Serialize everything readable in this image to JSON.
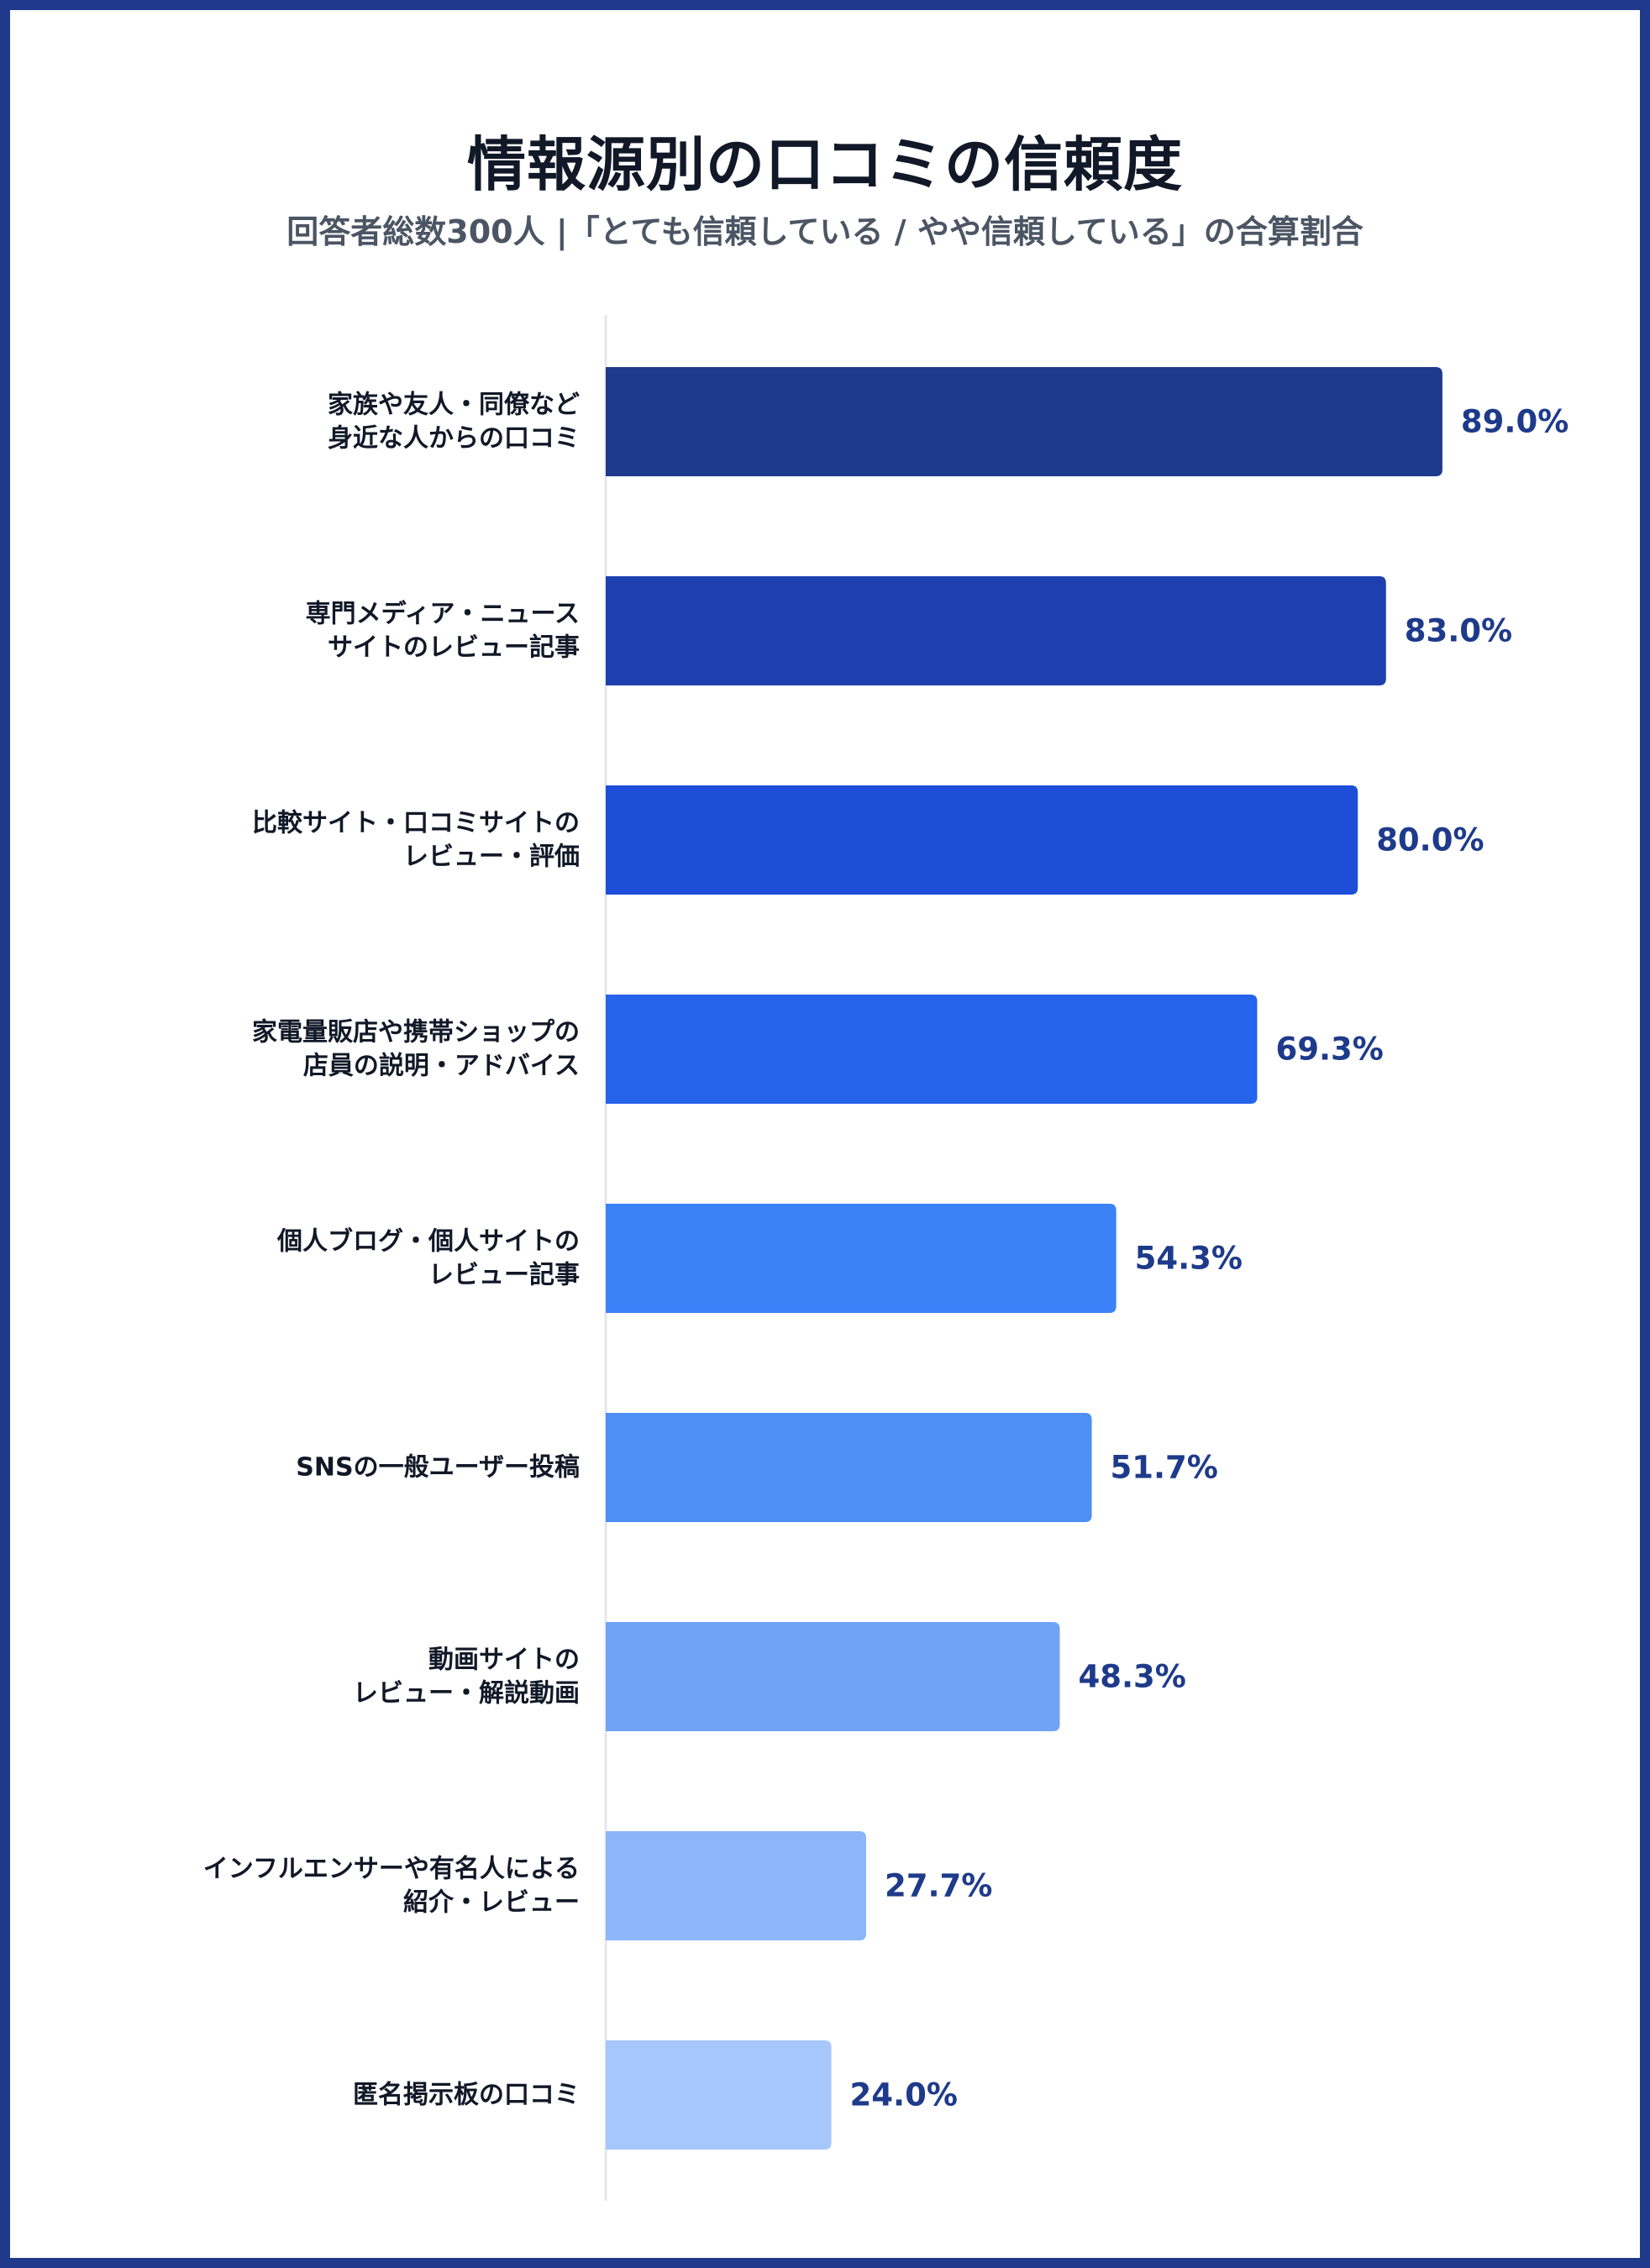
{
  "chart_data": {
    "type": "bar",
    "orientation": "horizontal",
    "title": "情報源別の口コミの信頼度",
    "subtitle": "回答者総数300人 |「とても信頼している / やや信頼している」の合算割合",
    "categories": [
      [
        "家族や友人・同僚など",
        "身近な人からの口コミ"
      ],
      [
        "専門メディア・ニュース",
        "サイトのレビュー記事"
      ],
      [
        "比較サイト・口コミサイトの",
        "レビュー・評価"
      ],
      [
        "家電量販店や携帯ショップの",
        "店員の説明・アドバイス"
      ],
      [
        "個人ブログ・個人サイトの",
        "レビュー記事"
      ],
      [
        "SNSの一般ユーザー投稿"
      ],
      [
        "動画サイトの",
        "レビュー・解説動画"
      ],
      [
        "インフルエンサーや有名人による",
        "紹介・レビュー"
      ],
      [
        "匿名掲示板の口コミ"
      ]
    ],
    "values": [
      89.0,
      83.0,
      80.0,
      69.3,
      54.3,
      51.7,
      48.3,
      27.7,
      24.0
    ],
    "value_labels": [
      "89.0%",
      "83.0%",
      "80.0%",
      "69.3%",
      "54.3%",
      "51.7%",
      "48.3%",
      "27.7%",
      "24.0%"
    ],
    "bar_colors": [
      "#1e3a8a",
      "#1e40af",
      "#1d4ed8",
      "#2563eb",
      "#3b82f6",
      "#4f8ef2",
      "#70a3f5",
      "#8db6f8",
      "#a6c7fb"
    ],
    "value_label_color": "#1e3a8a",
    "axis_color": "#e5e7eb",
    "xlim": [
      0,
      100
    ],
    "grid": false,
    "legend": "none"
  },
  "frame_color": "#1f3a8a"
}
